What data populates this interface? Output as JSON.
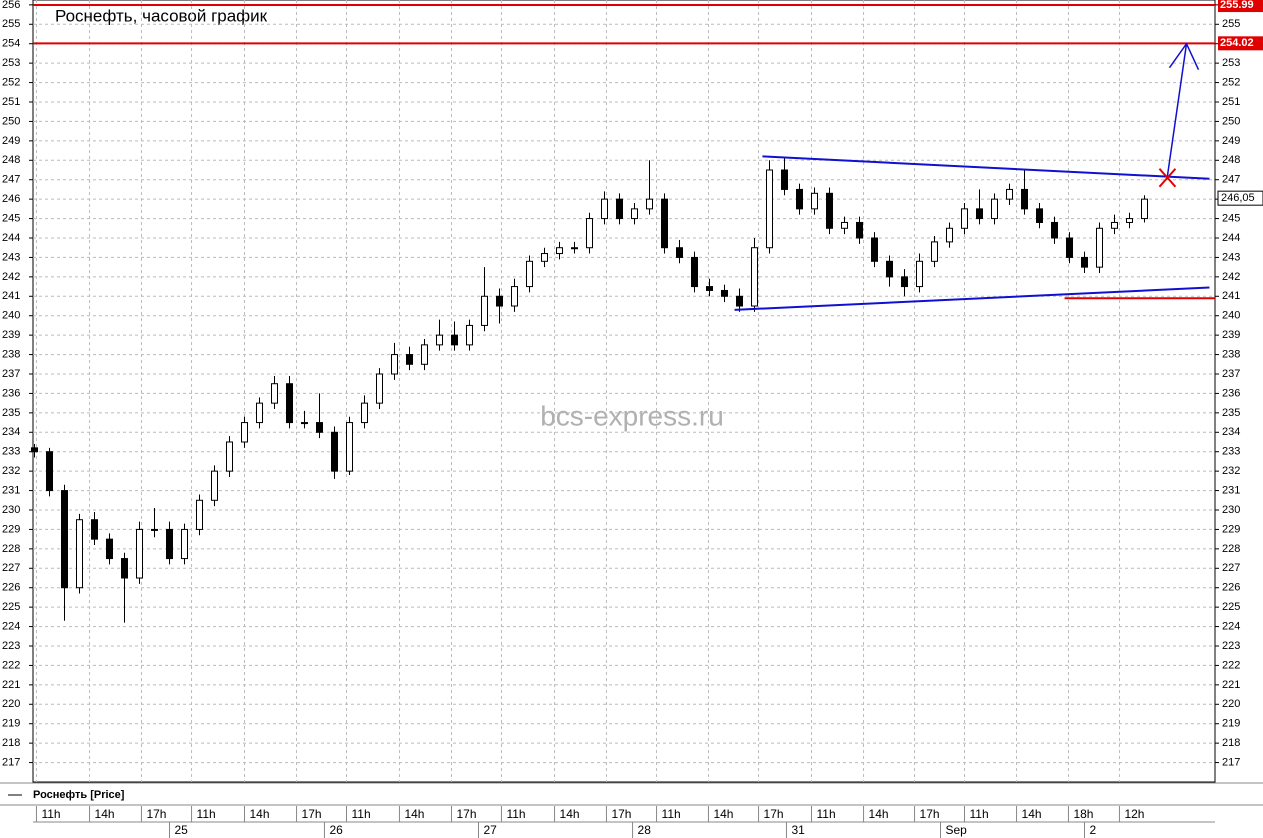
{
  "chart_data": {
    "type": "candlestick",
    "title": "Роснефть, часовой график",
    "watermark": "bcs-express.ru",
    "legend": "Роснефть [Price]",
    "ylim": [
      216,
      256.25
    ],
    "yticks": [
      217,
      218,
      219,
      220,
      221,
      222,
      223,
      224,
      225,
      226,
      227,
      228,
      229,
      230,
      231,
      232,
      233,
      234,
      235,
      236,
      237,
      238,
      239,
      240,
      241,
      242,
      243,
      244,
      245,
      246,
      247,
      248,
      249,
      250,
      251,
      252,
      253,
      254,
      255,
      256
    ],
    "xlim": [
      -0.1,
      78.7
    ],
    "grid": true,
    "hour_ticks": [
      {
        "value": 0.13,
        "label": "11h"
      },
      {
        "value": 3.67,
        "label": "14h"
      },
      {
        "value": 7.13,
        "label": "17h"
      },
      {
        "value": 10.47,
        "label": "11h"
      },
      {
        "value": 14,
        "label": "14h"
      },
      {
        "value": 17.47,
        "label": "17h"
      },
      {
        "value": 20.8,
        "label": "11h"
      },
      {
        "value": 24.33,
        "label": "14h"
      },
      {
        "value": 27.8,
        "label": "17h"
      },
      {
        "value": 31.13,
        "label": "11h"
      },
      {
        "value": 34.67,
        "label": "14h"
      },
      {
        "value": 38.13,
        "label": "17h"
      },
      {
        "value": 41.47,
        "label": "11h"
      },
      {
        "value": 44.93,
        "label": "14h"
      },
      {
        "value": 48.27,
        "label": "17h"
      },
      {
        "value": 51.8,
        "label": "11h"
      },
      {
        "value": 55.27,
        "label": "14h"
      },
      {
        "value": 58.67,
        "label": "17h"
      },
      {
        "value": 62,
        "label": "11h"
      },
      {
        "value": 65.47,
        "label": "14h"
      },
      {
        "value": 68.93,
        "label": "18h"
      },
      {
        "value": 72.33,
        "label": "12h"
      }
    ],
    "day_ticks": [
      {
        "value": 9,
        "label": "25"
      },
      {
        "value": 19.33,
        "label": "26"
      },
      {
        "value": 29.6,
        "label": "27"
      },
      {
        "value": 39.87,
        "label": "28"
      },
      {
        "value": 50.13,
        "label": "31"
      },
      {
        "value": 60.4,
        "label": "Sep"
      },
      {
        "value": 70,
        "label": "2"
      }
    ],
    "x": [
      0,
      1,
      2,
      3,
      4,
      5,
      6,
      7,
      8,
      9,
      10,
      11,
      12,
      13,
      14,
      15,
      16,
      17,
      18,
      19,
      20,
      21,
      22,
      23,
      24,
      25,
      26,
      27,
      28,
      29,
      30,
      31,
      32,
      33,
      34,
      35,
      36,
      37,
      38,
      39,
      40,
      41,
      42,
      43,
      44,
      45,
      46,
      47,
      48,
      49,
      50,
      51,
      52,
      53,
      54,
      55,
      56,
      57,
      58,
      59,
      60,
      61,
      62,
      63,
      64,
      65,
      66,
      67,
      68,
      69,
      70,
      71,
      72,
      73,
      74
    ],
    "series": [
      {
        "name": "Роснефть [Price]",
        "color": "#000000",
        "open": [
          233.2,
          233,
          231,
          226,
          229.5,
          228.5,
          227.5,
          226.5,
          229,
          229,
          227.5,
          229,
          230.5,
          232,
          233.5,
          234.5,
          235.5,
          236.5,
          234.5,
          234.5,
          234,
          232,
          234.5,
          235.5,
          237,
          238,
          237.5,
          238.5,
          239,
          238.5,
          239.5,
          241,
          240.5,
          241.5,
          242.8,
          243.2,
          243.5,
          243.5,
          245,
          246,
          245,
          245.5,
          246,
          243.5,
          243,
          241.5,
          241.3,
          241,
          240.5,
          243.5,
          247.5,
          246.5,
          245.5,
          246.3,
          244.5,
          244.8,
          244,
          242.8,
          242,
          241.5,
          242.8,
          243.8,
          244.5,
          245.5,
          245,
          246,
          246.5,
          245.5,
          244.8,
          244,
          243,
          242.5,
          244.5,
          244.8,
          245
        ],
        "high": [
          233.4,
          233.2,
          231.3,
          229.8,
          229.9,
          228.8,
          227.8,
          229.4,
          230.1,
          229.4,
          229.3,
          230.8,
          232.3,
          233.8,
          234.8,
          235.8,
          236.9,
          236.9,
          235.1,
          236,
          234.3,
          234.8,
          235.9,
          237.3,
          238.6,
          238.4,
          238.8,
          239.8,
          239.7,
          239.8,
          242.5,
          241.4,
          241.9,
          243.1,
          243.5,
          243.8,
          243.8,
          245.3,
          246.4,
          246.3,
          245.8,
          248,
          246.3,
          243.9,
          243.3,
          241.9,
          241.6,
          241.4,
          244,
          248,
          248.1,
          246.8,
          246.6,
          246.6,
          245.1,
          245.1,
          244.3,
          243.1,
          242.4,
          243.2,
          244.1,
          244.8,
          245.8,
          246.5,
          246.3,
          246.8,
          247.5,
          245.8,
          245.1,
          244.3,
          243.3,
          244.8,
          245.2,
          245.3,
          246.2
        ],
        "low": [
          232.7,
          230.7,
          224.3,
          225.7,
          228.2,
          227.2,
          224.2,
          226.2,
          228.6,
          227.2,
          227.2,
          228.7,
          230.2,
          231.7,
          233.2,
          234.2,
          235.2,
          234.2,
          234.2,
          233.7,
          231.6,
          231.8,
          234.2,
          235.2,
          236.7,
          237.2,
          237.2,
          238.2,
          238.2,
          238.2,
          239.2,
          239.6,
          240.2,
          241.2,
          242.5,
          242.9,
          243.2,
          243.2,
          244.7,
          244.7,
          244.7,
          245.2,
          243.2,
          242.7,
          241.2,
          241,
          240.7,
          240.2,
          240.2,
          243.2,
          246.2,
          245.2,
          245.2,
          244.2,
          244.2,
          243.7,
          242.5,
          241.5,
          241,
          241.2,
          242.5,
          243.5,
          244.2,
          244.7,
          244.7,
          245.7,
          245.2,
          244.5,
          243.7,
          242.7,
          242.2,
          242.2,
          244.2,
          244.5,
          244.8
        ],
        "close": [
          233,
          231,
          226,
          229.5,
          228.5,
          227.5,
          226.5,
          229,
          229,
          227.5,
          229,
          230.5,
          232,
          233.5,
          234.5,
          235.5,
          236.5,
          234.5,
          234.5,
          234,
          232,
          234.5,
          235.5,
          237,
          238,
          237.5,
          238.5,
          239,
          238.5,
          239.5,
          241,
          240.5,
          241.5,
          242.8,
          243.2,
          243.5,
          243.5,
          245,
          246,
          245,
          245.5,
          246,
          243.5,
          243,
          241.5,
          241.3,
          241,
          240.5,
          243.5,
          247.5,
          246.5,
          245.5,
          246.3,
          244.5,
          244.8,
          244,
          242.8,
          242,
          241.5,
          242.8,
          243.8,
          244.5,
          245.5,
          245,
          246,
          246.5,
          245.5,
          244.8,
          244,
          243,
          242.5,
          244.5,
          244.8,
          245,
          246
        ]
      }
    ],
    "levels": [
      {
        "value": 255.99,
        "label": "255.99",
        "color": "#e00000"
      },
      {
        "value": 254.02,
        "label": "254.02",
        "color": "#e00000"
      }
    ],
    "last_price": {
      "value": 246.05,
      "label": "246,05"
    },
    "trendlines": [
      {
        "x": [
          48.53,
          78.33
        ],
        "y": [
          248.2,
          247.05
        ],
        "color": "#1010d0"
      },
      {
        "x": [
          46.67,
          78.33
        ],
        "y": [
          240.3,
          241.45
        ],
        "color": "#1010d0"
      },
      {
        "x": [
          68.67,
          78.7
        ],
        "y": [
          240.9,
          240.9
        ],
        "color": "#e00000"
      }
    ],
    "arrow": {
      "x": [
        75.53,
        76.8
      ],
      "y": [
        247.2,
        254.0
      ],
      "color": "#1010d0"
    },
    "cross": {
      "x": 75.53,
      "y": 247.1,
      "color": "#e00000"
    }
  }
}
